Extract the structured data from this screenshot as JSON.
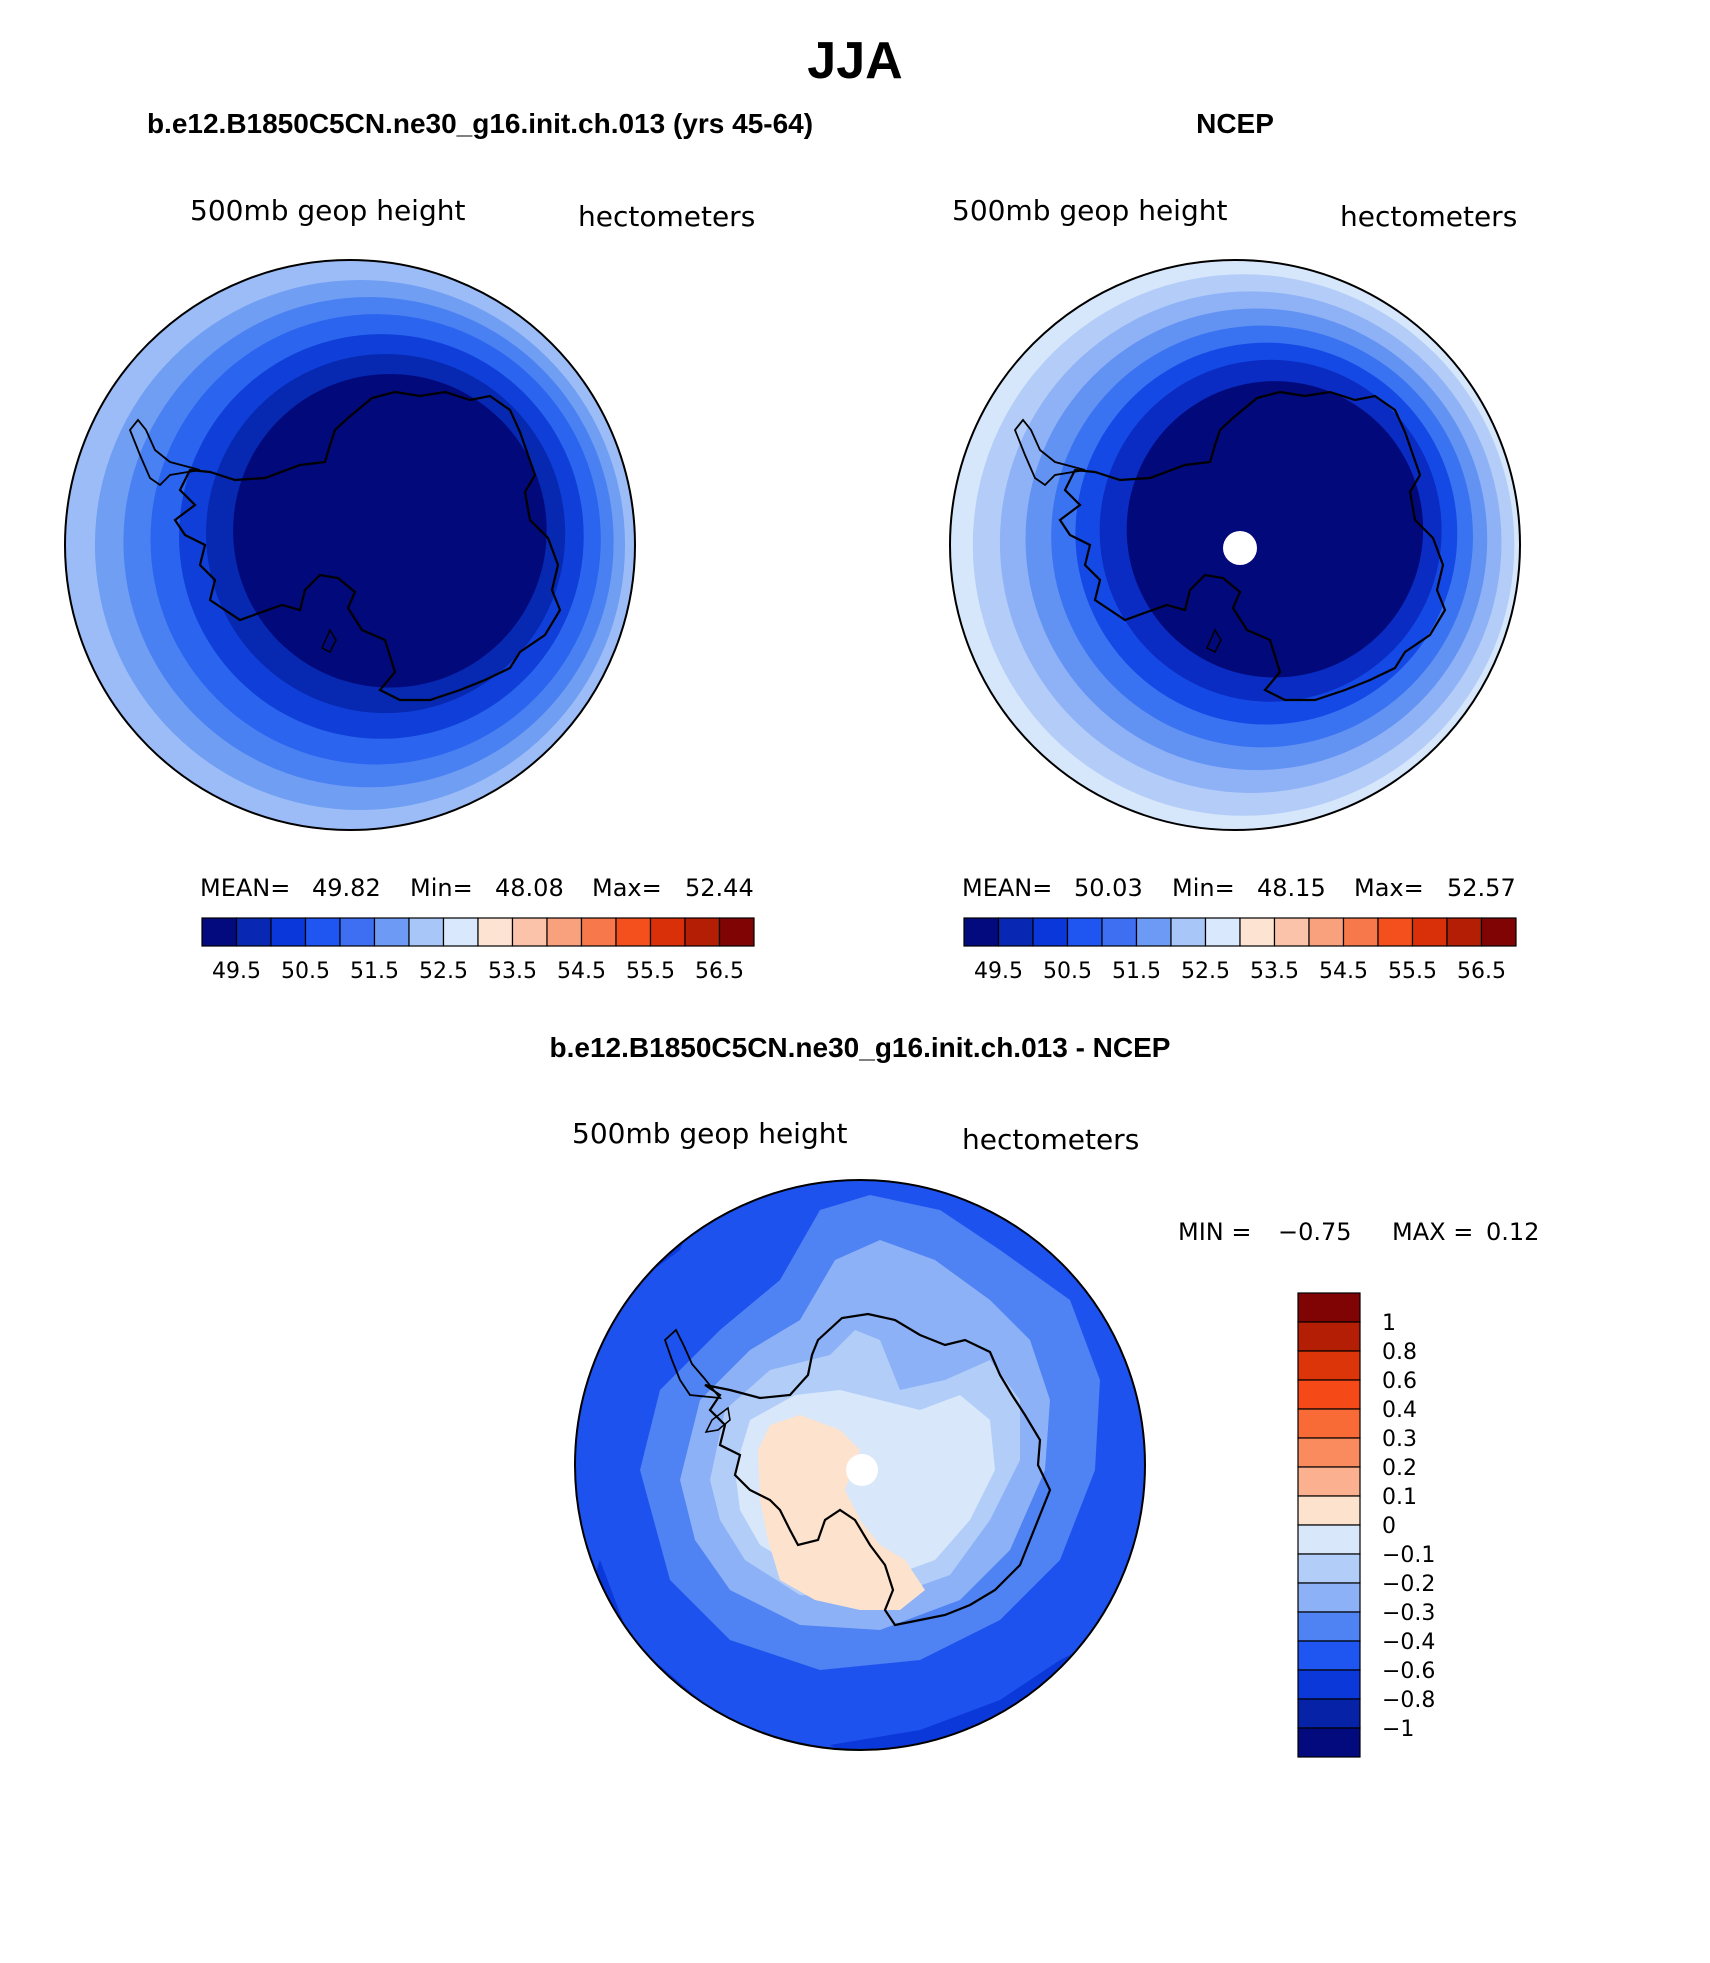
{
  "figure": {
    "season": "JJA",
    "colors": {
      "ink": "#000000",
      "background": "#ffffff",
      "missing": "#ffffff"
    }
  },
  "panels": [
    {
      "id": "model",
      "title": "b.e12.B1850C5CN.ne30_g16.init.ch.013 (yrs 45-64)",
      "left_label": "500mb geop height",
      "right_label": "hectometers",
      "stats": {
        "mean_label": "MEAN=",
        "mean": "49.82",
        "min_label": "Min=",
        "min": "48.08",
        "max_label": "Max=",
        "max": "52.44"
      },
      "has_pole_hole": false,
      "rings": [
        {
          "color": "#9cbcf7",
          "level": "52.5",
          "span": 1.0,
          "dx": 0.0,
          "dy": 0.0
        },
        {
          "color": "#6f9ef3",
          "level": "52",
          "span": 0.93,
          "dx": 0.035,
          "dy": 0.0
        },
        {
          "color": "#4a81f2",
          "level": "51.5",
          "span": 0.86,
          "dx": 0.065,
          "dy": -0.01
        },
        {
          "color": "#2a64ef",
          "level": "51",
          "span": 0.79,
          "dx": 0.09,
          "dy": -0.02
        },
        {
          "color": "#0f3fd8",
          "level": "50.5",
          "span": 0.71,
          "dx": 0.11,
          "dy": -0.03
        },
        {
          "color": "#0728b0",
          "level": "50",
          "span": 0.63,
          "dx": 0.125,
          "dy": -0.04
        },
        {
          "color": "#01097b",
          "level": "49.5",
          "span": 0.55,
          "dx": 0.14,
          "dy": -0.05
        }
      ]
    },
    {
      "id": "obs",
      "title": "NCEP",
      "left_label": "500mb geop height",
      "right_label": "hectometers",
      "stats": {
        "mean_label": "MEAN=",
        "mean": "50.03",
        "min_label": "Min=",
        "min": "48.15",
        "max_label": "Max=",
        "max": "52.57"
      },
      "has_pole_hole": true,
      "rings": [
        {
          "color": "#d6e6fb",
          "level": "53",
          "span": 1.0,
          "dx": 0.0,
          "dy": 0.0
        },
        {
          "color": "#b3cdf8",
          "level": "52.5",
          "span": 0.95,
          "dx": 0.03,
          "dy": 0.0
        },
        {
          "color": "#8fb2f6",
          "level": "52",
          "span": 0.88,
          "dx": 0.055,
          "dy": -0.01
        },
        {
          "color": "#6293f3",
          "level": "51.5",
          "span": 0.81,
          "dx": 0.075,
          "dy": -0.02
        },
        {
          "color": "#3a73f1",
          "level": "51",
          "span": 0.74,
          "dx": 0.095,
          "dy": -0.03
        },
        {
          "color": "#1549e6",
          "level": "50.5",
          "span": 0.67,
          "dx": 0.11,
          "dy": -0.04
        },
        {
          "color": "#0a2cc2",
          "level": "50",
          "span": 0.6,
          "dx": 0.125,
          "dy": -0.05
        },
        {
          "color": "#01097b",
          "level": "49.5",
          "span": 0.52,
          "dx": 0.14,
          "dy": -0.055
        }
      ]
    }
  ],
  "abs_colorbar": {
    "labels": [
      "49.5",
      "50.5",
      "51.5",
      "52.5",
      "53.5",
      "54.5",
      "55.5",
      "56.5"
    ],
    "colors": [
      "#020a7d",
      "#0827b2",
      "#0a37da",
      "#1f55f0",
      "#3e6ff2",
      "#6d9af4",
      "#a8c6f8",
      "#d9e8fc",
      "#fde3d2",
      "#fbc4aa",
      "#f9a07d",
      "#f7784a",
      "#f4501e",
      "#d9300a",
      "#b31e05",
      "#800404"
    ]
  },
  "difference": {
    "title": "b.e12.B1850C5CN.ne30_g16.init.ch.013 - NCEP",
    "left_label": "500mb geop height",
    "right_label": "hectometers",
    "min_label": "MIN =",
    "min": "−0.75",
    "max_label": "MAX =",
    "max": "0.12",
    "has_pole_hole": true,
    "colorbar": {
      "levels": [
        "1",
        "0.8",
        "0.6",
        "0.4",
        "0.3",
        "0.2",
        "0.1",
        "0",
        "−0.1",
        "−0.2",
        "−0.3",
        "−0.4",
        "−0.6",
        "−0.8",
        "−1"
      ],
      "colors": [
        "#800404",
        "#b31e05",
        "#dd350a",
        "#f54a18",
        "#f86a36",
        "#f98b5e",
        "#fbb08f",
        "#fde2cd",
        "#d8e8fa",
        "#b1cdf8",
        "#8cb1f6",
        "#4f82f2",
        "#1f55f0",
        "#0b38d8",
        "#0623a8",
        "#020a7d"
      ]
    },
    "fields": [
      {
        "color": "#1e52ee",
        "level": "−0.4",
        "shape": "disk"
      },
      {
        "color": "#0b38d8",
        "level": "−0.6",
        "shape": "corner-patches"
      },
      {
        "color": "#4f82f2",
        "level": "−0.3",
        "shape": "inner-3"
      },
      {
        "color": "#8cb1f6",
        "level": "−0.2",
        "shape": "inner-2"
      },
      {
        "color": "#b1cdf8",
        "level": "−0.1",
        "shape": "inner-1"
      },
      {
        "color": "#d8e8fa",
        "level": "0",
        "shape": "inner-0"
      },
      {
        "color": "#fde2cd",
        "level": "0.1",
        "shape": "positive"
      }
    ]
  }
}
